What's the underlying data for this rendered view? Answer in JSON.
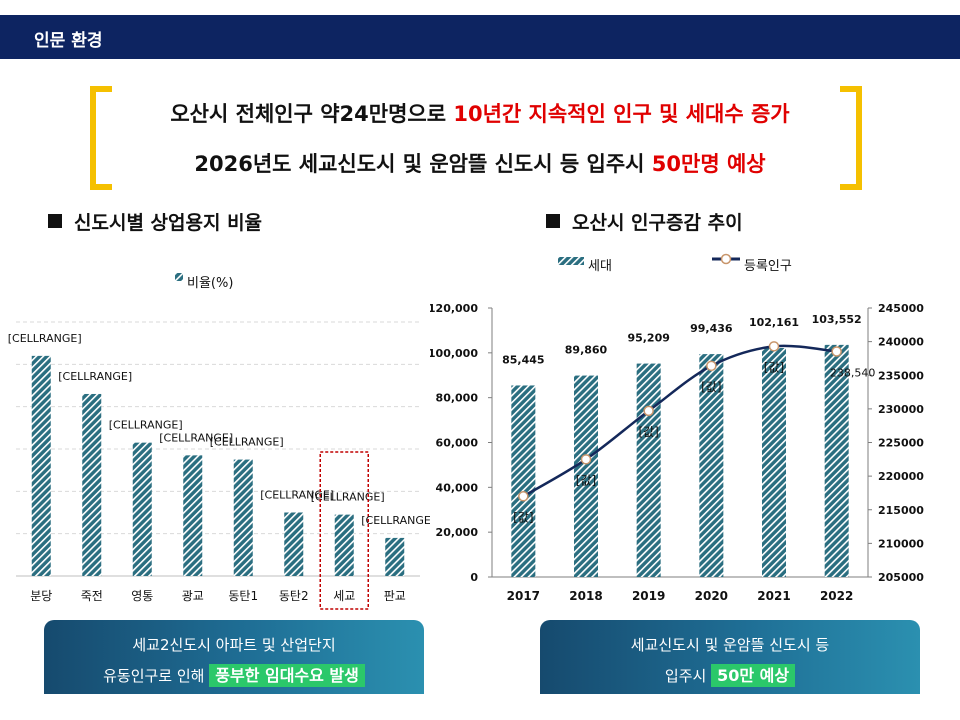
{
  "header": {
    "title": "인문 환경"
  },
  "headline": {
    "line1_part1": "오산시 전체인구 약24만명으로 ",
    "line1_part2": "10년간 지속적인 인구 및 세대수 증가",
    "line2_part1": "2026년도 세교신도시 및 운암뜰 신도시 등 입주시 ",
    "line2_part2": "50만명  예상"
  },
  "left_section": {
    "title": "신도시별 상업용지 비율"
  },
  "right_section": {
    "title": "오산시 인구증감 추이"
  },
  "left_callout": {
    "line1": "세교2신도시 아파트 및 산업단지",
    "line2_prefix": "유동인구로 인해 ",
    "line2_highlight": "풍부한 임대수요 발생"
  },
  "right_callout": {
    "line1": "세교신도시 및 운암뜰 신도시 등",
    "line2_prefix": "입주시 ",
    "line2_highlight": "50만 예상"
  },
  "colors": {
    "navy": "#0d2461",
    "accent_red": "#e00000",
    "bracket_yellow": "#f5c000",
    "bar_teal": "#2a6e80",
    "line_navy": "#14285a",
    "highlight_green": "#2bc86a"
  },
  "chart_data": [
    {
      "type": "bar",
      "legend": "비율(%)",
      "legend_position": "top",
      "categories": [
        "분당",
        "죽전",
        "영통",
        "광교",
        "동탄1",
        "동탄2",
        "세교",
        "판교"
      ],
      "values": [
        10.4,
        8.6,
        6.3,
        5.7,
        5.5,
        3.0,
        2.9,
        1.8
      ],
      "data_labels": [
        "[CELLRANGE]",
        "[CELLRANGE]",
        "[CELLRANGE]",
        "[CELLRANGE]",
        "[CELLRANGE]",
        "[CELLRANGE]",
        "[CELLRANGE]",
        "[CELLRANGE]"
      ],
      "ylim": [
        0,
        12
      ],
      "grid": true,
      "highlight_category": "세교"
    },
    {
      "type": "bar+line",
      "categories": [
        "2017",
        "2018",
        "2019",
        "2020",
        "2021",
        "2022"
      ],
      "series": [
        {
          "name": "세대",
          "type": "bar",
          "axis": "left",
          "values": [
            85445,
            89860,
            95209,
            99436,
            102161,
            103552
          ],
          "labels": [
            "85,445",
            "89,860",
            "95,209",
            "99,436",
            "102,161",
            "103,552"
          ]
        },
        {
          "name": "등록인구",
          "type": "line",
          "axis": "right",
          "values": [
            217000,
            222500,
            229700,
            236400,
            239300,
            238540
          ],
          "labels": [
            "[값]",
            "[값]",
            "[값]",
            "[값]",
            "[값]",
            "238,540"
          ]
        }
      ],
      "left_ticks": [
        "0",
        "20,000",
        "40,000",
        "60,000",
        "80,000",
        "100,000",
        "120,000"
      ],
      "right_ticks": [
        "205000",
        "210000",
        "215000",
        "220000",
        "225000",
        "230000",
        "235000",
        "240000",
        "245000"
      ],
      "left_ylim": [
        0,
        120000
      ],
      "right_ylim": [
        205000,
        245000
      ],
      "grid": false,
      "legend_position": "top"
    }
  ]
}
